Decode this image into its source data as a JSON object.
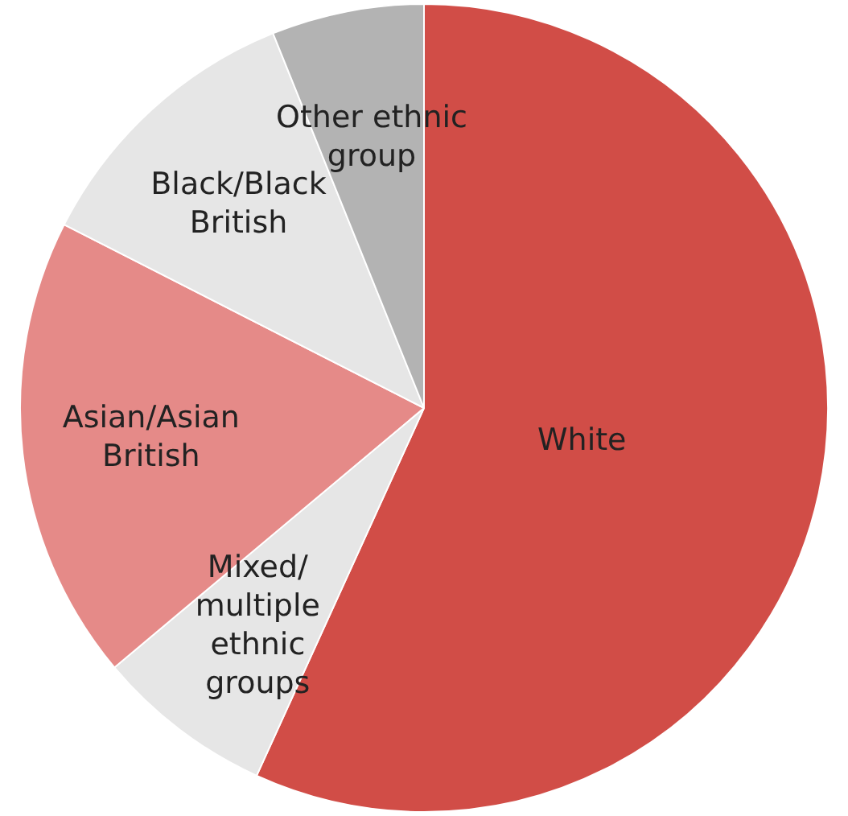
{
  "chart_data": {
    "type": "pie",
    "categories": [
      "White",
      "Mixed/multiple ethnic groups",
      "Asian/Asian British",
      "Black/Black British",
      "Other ethnic group"
    ],
    "values": [
      56.8,
      7.1,
      18.6,
      11.4,
      6.1
    ],
    "colors": [
      "#d14d47",
      "#e6e6e6",
      "#e58a88",
      "#e6e6e6",
      "#b3b3b3"
    ],
    "legend": false
  }
}
